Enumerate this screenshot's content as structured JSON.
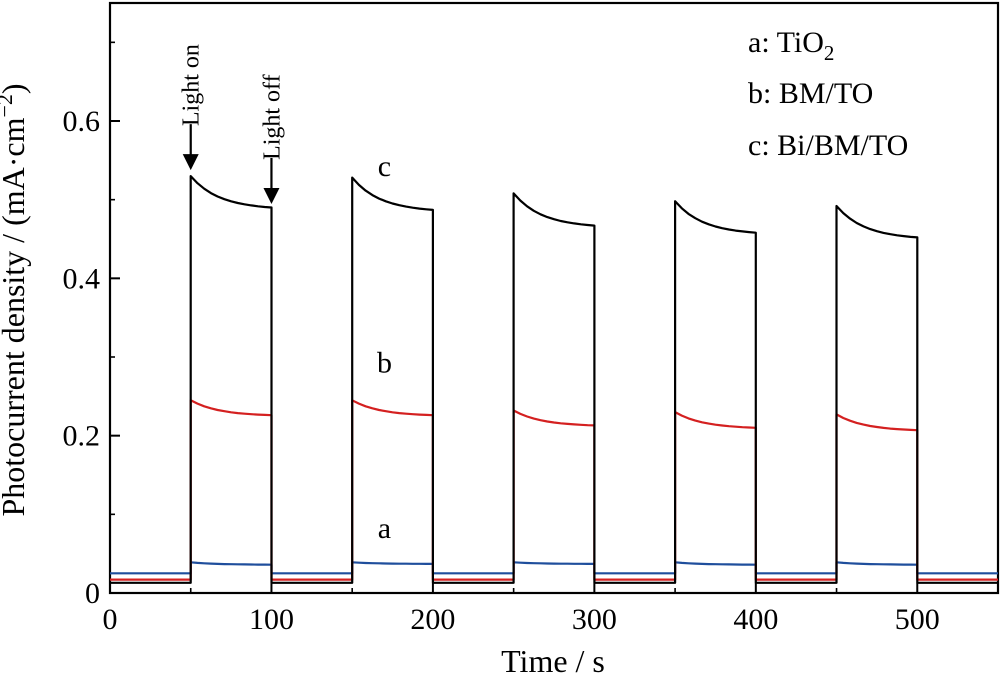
{
  "chart_data": {
    "type": "line",
    "xlabel": "Time / s",
    "ylabel": "Photocurrent density / (mA·cm",
    "ylabel_sup": "−2",
    "ylabel_close": ")",
    "xlim": [
      0,
      550
    ],
    "ylim": [
      0,
      0.75
    ],
    "x_ticks": [
      0,
      100,
      200,
      300,
      400,
      500
    ],
    "x_tick_labels": [
      "0",
      "100",
      "200",
      "300",
      "400",
      "500"
    ],
    "y_ticks": [
      0,
      0.2,
      0.4,
      0.6
    ],
    "y_tick_labels": [
      "0",
      "0.2",
      "0.4",
      "0.6"
    ],
    "grid": false,
    "legend_position": "top-right",
    "legend": [
      {
        "letter": "a:",
        "text": "TiO",
        "sub": "2"
      },
      {
        "letter": "b:",
        "text": "BM/TO",
        "sub": ""
      },
      {
        "letter": "c:",
        "text": "Bi/BM/TO",
        "sub": ""
      }
    ],
    "on_times": [
      50,
      150,
      250,
      350,
      450
    ],
    "off_times": [
      100,
      200,
      300,
      400,
      500
    ],
    "series": [
      {
        "tag": "a",
        "color": "#1f4e9c",
        "dark": 0.025,
        "cycles": [
          [
            0.039,
            0.036
          ],
          [
            0.039,
            0.037
          ],
          [
            0.039,
            0.037
          ],
          [
            0.039,
            0.036
          ],
          [
            0.039,
            0.036
          ]
        ],
        "tag_at": [
          170,
          0.07
        ]
      },
      {
        "tag": "b",
        "color": "#d42020",
        "dark": 0.017,
        "cycles": [
          [
            0.245,
            0.226
          ],
          [
            0.245,
            0.226
          ],
          [
            0.232,
            0.213
          ],
          [
            0.23,
            0.21
          ],
          [
            0.227,
            0.207
          ]
        ],
        "tag_at": [
          170,
          0.28
        ]
      },
      {
        "tag": "c",
        "color": "#000000",
        "dark": 0.013,
        "cycles": [
          [
            0.53,
            0.49
          ],
          [
            0.528,
            0.487
          ],
          [
            0.508,
            0.467
          ],
          [
            0.498,
            0.458
          ],
          [
            0.492,
            0.452
          ]
        ],
        "tag_at": [
          170,
          0.53
        ]
      }
    ],
    "annotations": [
      {
        "text": "Light on",
        "x": 50,
        "y": 0.535
      },
      {
        "text": "Light off",
        "x": 100,
        "y": 0.492
      }
    ]
  }
}
